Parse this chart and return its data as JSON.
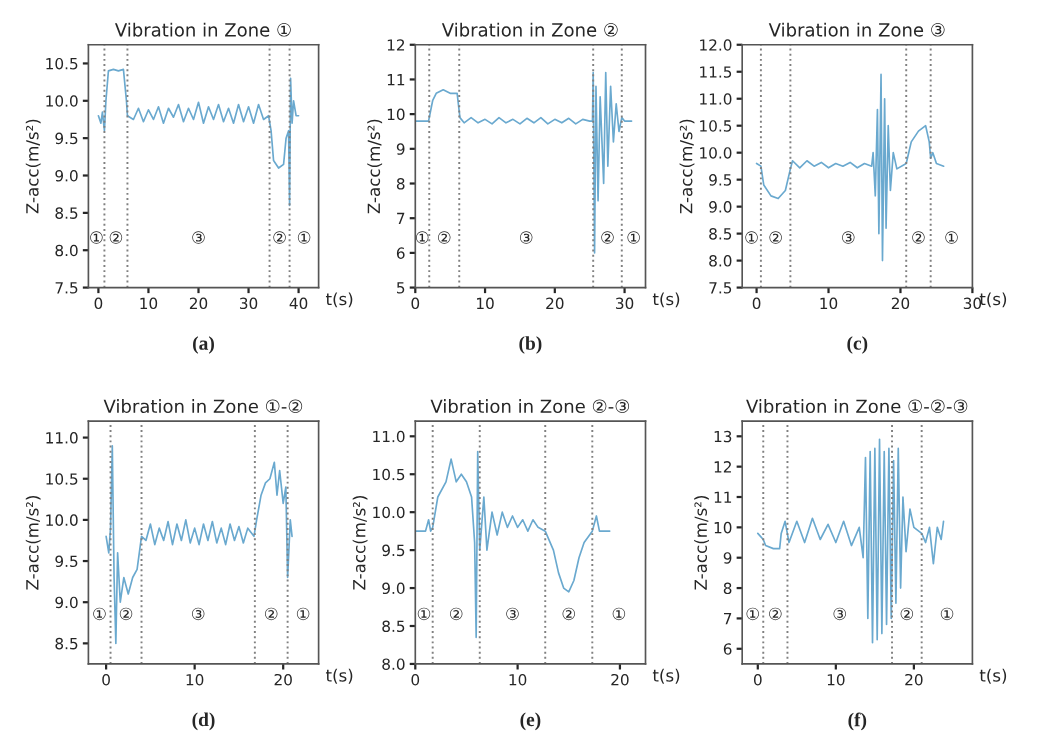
{
  "chart_data": [
    {
      "type": "line",
      "title": "Vibration in Zone ①",
      "xlabel": "t(s)",
      "ylabel": "Z-acc(m/s²)",
      "xlim": [
        -2,
        44
      ],
      "xticks": [
        0,
        10,
        20,
        30,
        40
      ],
      "ylim": [
        7.5,
        10.75
      ],
      "yticks": [
        7.5,
        {
          "value": 8,
          "label": "8.0"
        },
        8.5,
        {
          "value": 9,
          "label": "9.0"
        },
        9.5,
        {
          "value": 10,
          "label": "10.0"
        },
        10.5
      ],
      "series": [
        {
          "color": "#6aa9cf",
          "x": [
            0,
            0.5,
            0.8,
            1.2,
            1.5,
            2,
            3,
            4,
            5,
            5.6,
            5.8,
            7,
            8,
            9,
            10,
            11,
            12,
            13,
            14,
            15,
            16,
            17,
            18,
            19,
            20,
            21,
            22,
            23,
            24,
            25,
            26,
            27,
            28,
            29,
            30,
            31,
            32,
            33,
            34,
            34.5,
            35,
            36,
            37,
            37.5,
            38,
            38.2,
            38.4,
            38.7,
            39,
            39.5,
            40
          ],
          "values": [
            9.8,
            9.7,
            9.85,
            9.6,
            10.0,
            10.4,
            10.42,
            10.4,
            10.42,
            10.0,
            9.8,
            9.75,
            9.9,
            9.72,
            9.88,
            9.75,
            9.92,
            9.7,
            9.9,
            9.78,
            9.95,
            9.72,
            9.9,
            9.75,
            9.98,
            9.7,
            9.92,
            9.75,
            9.95,
            9.72,
            9.9,
            9.7,
            9.95,
            9.72,
            9.92,
            9.7,
            9.95,
            9.75,
            9.8,
            9.6,
            9.2,
            9.1,
            9.15,
            9.5,
            9.6,
            8.6,
            10.3,
            9.7,
            10.0,
            9.8,
            9.8
          ]
        }
      ],
      "ref_lines": [
        {
          "axis": "x",
          "value": 1.2,
          "color": "#808080",
          "line_style": "dotted"
        },
        {
          "axis": "x",
          "value": 5.8,
          "color": "#808080",
          "line_style": "dotted"
        },
        {
          "axis": "x",
          "value": 34.2,
          "color": "#808080",
          "line_style": "dotted"
        },
        {
          "axis": "x",
          "value": 38.2,
          "color": "#808080",
          "line_style": "dotted"
        }
      ],
      "annotations": [
        "①",
        "②",
        "③",
        "②",
        "①",
        "(a)"
      ]
    },
    {
      "type": "line",
      "title": "Vibration in Zone ②",
      "xlabel": "t(s)",
      "ylabel": "Z-acc(m/s²)",
      "xlim": [
        0,
        33
      ],
      "xticks": [
        0,
        10,
        20,
        30
      ],
      "ylim": [
        5,
        12
      ],
      "yticks": [
        5,
        6,
        7,
        8,
        9,
        10,
        11,
        12
      ],
      "series": [
        {
          "color": "#6aa9cf",
          "x": [
            0,
            1.9,
            2.5,
            3,
            4,
            5,
            6,
            6.4,
            7,
            8,
            9,
            10,
            11,
            12,
            13,
            14,
            15,
            16,
            17,
            18,
            19,
            20,
            21,
            22,
            23,
            24,
            25,
            25.4,
            25.5,
            25.7,
            25.9,
            26.2,
            26.5,
            27,
            27.3,
            27.6,
            28,
            28.4,
            28.8,
            29.2,
            29.6,
            30,
            31
          ],
          "values": [
            9.8,
            9.8,
            10.4,
            10.6,
            10.7,
            10.6,
            10.6,
            9.9,
            9.75,
            9.9,
            9.75,
            9.85,
            9.72,
            9.9,
            9.75,
            9.85,
            9.72,
            9.88,
            9.75,
            9.9,
            9.72,
            9.85,
            9.75,
            9.88,
            9.72,
            9.85,
            9.8,
            9.8,
            11.2,
            6.0,
            10.8,
            7.5,
            10.5,
            8.0,
            11.2,
            8.5,
            10.8,
            9.2,
            10.3,
            9.5,
            9.9,
            9.8,
            9.8
          ]
        }
      ],
      "ref_lines": [
        {
          "axis": "x",
          "value": 2,
          "color": "#808080",
          "line_style": "dotted"
        },
        {
          "axis": "x",
          "value": 6.3,
          "color": "#808080",
          "line_style": "dotted"
        },
        {
          "axis": "x",
          "value": 25.5,
          "color": "#808080",
          "line_style": "dotted"
        },
        {
          "axis": "x",
          "value": 29.6,
          "color": "#808080",
          "line_style": "dotted"
        }
      ],
      "annotations": [
        "①",
        "②",
        "③",
        "②",
        "①",
        "(b)"
      ]
    },
    {
      "type": "line",
      "title": "Vibration in Zone ③",
      "xlabel": "t(s)",
      "ylabel": "Z-acc(m/s²)",
      "xlim": [
        -2,
        30
      ],
      "xticks": [
        0,
        10,
        20,
        30
      ],
      "ylim": [
        7.5,
        12
      ],
      "yticks": [
        7.5,
        {
          "value": 8,
          "label": "8.0"
        },
        8.5,
        {
          "value": 9,
          "label": "9.0"
        },
        9.5,
        {
          "value": 10,
          "label": "10.0"
        },
        10.5,
        {
          "value": 11,
          "label": "11.0"
        },
        11.5,
        {
          "value": 12,
          "label": "12.0"
        }
      ],
      "series": [
        {
          "color": "#6aa9cf",
          "x": [
            0,
            0.6,
            1,
            2,
            3,
            4,
            4.7,
            5,
            6,
            7,
            8,
            9,
            10,
            11,
            12,
            13,
            14,
            15,
            16,
            16.2,
            16.5,
            16.8,
            17,
            17.3,
            17.5,
            17.8,
            18,
            18.3,
            18.6,
            19,
            19.5,
            20.8,
            21.5,
            22.5,
            23.5,
            24,
            24.2,
            24.5,
            25,
            26
          ],
          "values": [
            9.8,
            9.75,
            9.4,
            9.2,
            9.15,
            9.3,
            9.7,
            9.85,
            9.72,
            9.85,
            9.75,
            9.82,
            9.72,
            9.8,
            9.75,
            9.82,
            9.72,
            9.8,
            9.75,
            10.0,
            9.2,
            10.8,
            8.5,
            11.45,
            8.0,
            11.0,
            8.6,
            10.5,
            9.3,
            10.0,
            9.7,
            9.8,
            10.2,
            10.4,
            10.5,
            10.2,
            9.9,
            10.0,
            9.8,
            9.75
          ]
        }
      ],
      "ref_lines": [
        {
          "axis": "x",
          "value": 0.6,
          "color": "#808080",
          "line_style": "dotted"
        },
        {
          "axis": "x",
          "value": 4.7,
          "color": "#808080",
          "line_style": "dotted"
        },
        {
          "axis": "x",
          "value": 20.8,
          "color": "#808080",
          "line_style": "dotted"
        },
        {
          "axis": "x",
          "value": 24.2,
          "color": "#808080",
          "line_style": "dotted"
        }
      ],
      "annotations": [
        "①",
        "②",
        "③",
        "②",
        "①",
        "(c)"
      ]
    },
    {
      "type": "line",
      "title": "Vibration in Zone ①-②",
      "xlabel": "t(s)",
      "ylabel": "Z-acc(m/s²)",
      "xlim": [
        -2,
        24
      ],
      "xticks": [
        0,
        10,
        20
      ],
      "ylim": [
        8.25,
        11.2
      ],
      "yticks": [
        8.5,
        {
          "value": 9,
          "label": "9.0"
        },
        9.5,
        {
          "value": 10,
          "label": "10.0"
        },
        10.5,
        {
          "value": 11,
          "label": "11.0"
        }
      ],
      "series": [
        {
          "color": "#6aa9cf",
          "x": [
            0,
            0.3,
            0.5,
            0.7,
            0.9,
            1.1,
            1.3,
            1.6,
            2,
            2.5,
            3,
            3.5,
            4,
            4.5,
            5,
            5.5,
            6,
            6.5,
            7,
            7.5,
            8,
            8.5,
            9,
            9.5,
            10,
            10.5,
            11,
            11.5,
            12,
            12.5,
            13,
            13.5,
            14,
            14.5,
            15,
            15.5,
            16,
            16.7,
            17,
            17.5,
            18,
            18.5,
            19,
            19.3,
            19.6,
            20,
            20.3,
            20.5,
            20.8,
            21
          ],
          "values": [
            9.8,
            9.6,
            9.9,
            10.9,
            9.3,
            8.5,
            9.6,
            9.0,
            9.3,
            9.1,
            9.3,
            9.4,
            9.8,
            9.75,
            9.95,
            9.7,
            9.9,
            9.75,
            9.98,
            9.7,
            9.95,
            9.75,
            10.0,
            9.72,
            9.9,
            9.7,
            9.95,
            9.75,
            9.98,
            9.72,
            9.9,
            9.7,
            9.95,
            9.75,
            9.92,
            9.72,
            9.9,
            9.8,
            10.0,
            10.3,
            10.45,
            10.5,
            10.7,
            10.3,
            10.6,
            10.2,
            10.4,
            9.3,
            10.0,
            9.8
          ]
        }
      ],
      "ref_lines": [
        {
          "axis": "x",
          "value": 0.5,
          "color": "#808080",
          "line_style": "dotted"
        },
        {
          "axis": "x",
          "value": 4,
          "color": "#808080",
          "line_style": "dotted"
        },
        {
          "axis": "x",
          "value": 16.8,
          "color": "#808080",
          "line_style": "dotted"
        },
        {
          "axis": "x",
          "value": 20.5,
          "color": "#808080",
          "line_style": "dotted"
        }
      ],
      "annotations": [
        "①",
        "②",
        "③",
        "②",
        "①",
        "(d)"
      ]
    },
    {
      "type": "line",
      "title": "Vibration in Zone ②-③",
      "xlabel": "t(s)",
      "ylabel": "Z-acc(m/s²)",
      "xlim": [
        0,
        22.5
      ],
      "xticks": [
        0,
        10,
        20
      ],
      "ylim": [
        8,
        11.2
      ],
      "yticks": [
        {
          "value": 8,
          "label": "8.0"
        },
        8.5,
        {
          "value": 9,
          "label": "9.0"
        },
        9.5,
        {
          "value": 10,
          "label": "10.0"
        },
        10.5,
        {
          "value": 11,
          "label": "11.0"
        }
      ],
      "series": [
        {
          "color": "#6aa9cf",
          "x": [
            0,
            1,
            1.3,
            1.5,
            1.7,
            2.2,
            3,
            3.5,
            4,
            4.5,
            5,
            5.5,
            5.8,
            5.95,
            6.1,
            6.3,
            6.7,
            7,
            7.5,
            8,
            8.5,
            9,
            9.5,
            10,
            10.5,
            11,
            11.5,
            12,
            12.7,
            13.5,
            14,
            14.5,
            15,
            15.5,
            16,
            16.5,
            17.3,
            17.7,
            18,
            19
          ],
          "values": [
            9.75,
            9.75,
            9.9,
            9.75,
            9.8,
            10.2,
            10.4,
            10.7,
            10.4,
            10.5,
            10.4,
            10.2,
            9.6,
            8.35,
            10.8,
            9.5,
            10.2,
            9.5,
            10.0,
            9.7,
            10.0,
            9.8,
            9.95,
            9.8,
            9.9,
            9.75,
            9.9,
            9.8,
            9.75,
            9.5,
            9.2,
            9.0,
            8.95,
            9.1,
            9.4,
            9.6,
            9.75,
            9.95,
            9.75,
            9.75
          ]
        }
      ],
      "ref_lines": [
        {
          "axis": "x",
          "value": 1.7,
          "color": "#808080",
          "line_style": "dotted"
        },
        {
          "axis": "x",
          "value": 6.3,
          "color": "#808080",
          "line_style": "dotted"
        },
        {
          "axis": "x",
          "value": 12.7,
          "color": "#808080",
          "line_style": "dotted"
        },
        {
          "axis": "x",
          "value": 17.3,
          "color": "#808080",
          "line_style": "dotted"
        }
      ],
      "annotations": [
        "①",
        "②",
        "③",
        "②",
        "①",
        "(e)"
      ]
    },
    {
      "type": "line",
      "title": "Vibration in Zone ①-②-③",
      "xlabel": "t(s)",
      "ylabel": "Z-acc(m/s²)",
      "xlim": [
        -2,
        27.5
      ],
      "xticks": [
        0,
        10,
        20
      ],
      "ylim": [
        5.5,
        13.5
      ],
      "yticks": [
        6,
        7,
        8,
        9,
        10,
        11,
        12,
        13
      ],
      "series": [
        {
          "color": "#6aa9cf",
          "x": [
            0,
            0.7,
            1,
            2,
            2.8,
            3,
            3.5,
            4,
            5,
            6,
            7,
            8,
            9,
            10,
            11,
            12,
            13,
            13.5,
            13.8,
            14.1,
            14.4,
            14.7,
            15,
            15.3,
            15.6,
            15.9,
            16.2,
            16.5,
            16.8,
            17.1,
            17.4,
            17.7,
            18,
            18.3,
            18.6,
            19,
            19.5,
            20,
            21,
            21.5,
            22,
            22.5,
            23,
            23.5,
            23.8
          ],
          "values": [
            9.8,
            9.6,
            9.4,
            9.3,
            9.3,
            9.8,
            10.2,
            9.5,
            10.2,
            9.5,
            10.3,
            9.6,
            10.1,
            9.5,
            10.2,
            9.4,
            10.0,
            9.0,
            12.3,
            7.0,
            12.5,
            6.2,
            12.6,
            6.3,
            12.9,
            6.5,
            12.5,
            6.8,
            12.6,
            7.0,
            12.2,
            7.5,
            12.6,
            8.0,
            11.0,
            9.2,
            10.6,
            10.0,
            9.8,
            9.5,
            10.0,
            8.8,
            10.0,
            9.6,
            10.2
          ]
        }
      ],
      "ref_lines": [
        {
          "axis": "x",
          "value": 0.7,
          "color": "#808080",
          "line_style": "dotted"
        },
        {
          "axis": "x",
          "value": 3.8,
          "color": "#808080",
          "line_style": "dotted"
        },
        {
          "axis": "x",
          "value": 17.2,
          "color": "#808080",
          "line_style": "dotted"
        },
        {
          "axis": "x",
          "value": 21,
          "color": "#808080",
          "line_style": "dotted"
        }
      ],
      "annotations": [
        "①",
        "②",
        "③",
        "②",
        "①",
        "(f)"
      ]
    }
  ]
}
